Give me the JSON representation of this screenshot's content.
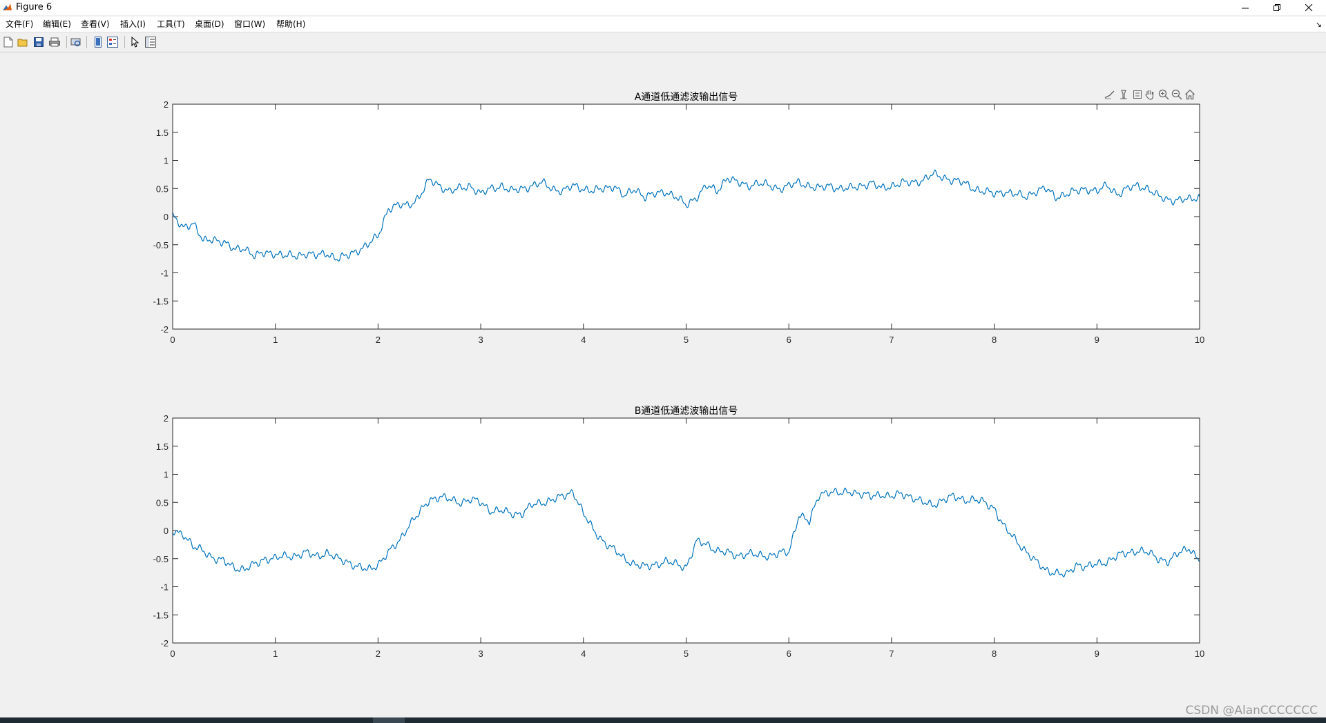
{
  "window": {
    "title": "Figure 6"
  },
  "menu": {
    "items": [
      "文件(F)",
      "编辑(E)",
      "查看(V)",
      "插入(I)",
      "工具(T)",
      "桌面(D)",
      "窗口(W)",
      "帮助(H)"
    ]
  },
  "toolbar": {
    "icons": [
      "new-figure-icon",
      "open-file-icon",
      "save-icon",
      "print-icon",
      "print-preview-icon",
      "link-plot-icon",
      "insert-legend-icon",
      "edit-plot-icon",
      "property-inspector-icon"
    ]
  },
  "axes_toolbar": {
    "icons": [
      "brush-icon",
      "data-tips-icon",
      "restore-view-icon",
      "pan-icon",
      "zoom-in-icon",
      "zoom-out-icon",
      "home-icon"
    ]
  },
  "colors": {
    "line": "#0072bd",
    "axes_bg": "#ffffff",
    "figure_bg": "#f0f0f0"
  },
  "watermark": "CSDN @AlanCCCCCCC",
  "chart_data": [
    {
      "type": "line",
      "title": "A通道低通滤波输出信号",
      "xlabel": "",
      "ylabel": "",
      "xlim": [
        0,
        10
      ],
      "ylim": [
        -2,
        2
      ],
      "xticks": [
        0,
        1,
        2,
        3,
        4,
        5,
        6,
        7,
        8,
        9,
        10
      ],
      "yticks": [
        2,
        1.5,
        1,
        0.5,
        0,
        -0.5,
        -1,
        -1.5,
        -2
      ],
      "grid": false,
      "series": [
        {
          "x": [
            0,
            0.1,
            0.2,
            0.3,
            0.4,
            0.5,
            0.6,
            0.7,
            0.8,
            0.9,
            1.0,
            1.1,
            1.2,
            1.3,
            1.4,
            1.5,
            1.6,
            1.7,
            1.8,
            1.9,
            2.0,
            2.1,
            2.2,
            2.3,
            2.4,
            2.5,
            2.6,
            2.7,
            2.8,
            2.9,
            3.0,
            3.1,
            3.2,
            3.3,
            3.4,
            3.5,
            3.6,
            3.7,
            3.8,
            3.9,
            4.0,
            4.1,
            4.2,
            4.3,
            4.4,
            4.5,
            4.6,
            4.7,
            4.8,
            4.9,
            5.0,
            5.1,
            5.2,
            5.3,
            5.4,
            5.5,
            5.6,
            5.7,
            5.8,
            5.9,
            6.0,
            6.1,
            6.2,
            6.3,
            6.4,
            6.5,
            6.6,
            6.7,
            6.8,
            6.9,
            7.0,
            7.1,
            7.2,
            7.3,
            7.4,
            7.5,
            7.6,
            7.7,
            7.8,
            7.9,
            8.0,
            8.1,
            8.2,
            8.3,
            8.4,
            8.5,
            8.6,
            8.7,
            8.8,
            8.9,
            9.0,
            9.1,
            9.2,
            9.3,
            9.4,
            9.5,
            9.6,
            9.7,
            9.8,
            9.9,
            10.0
          ],
          "y": [
            0,
            -0.2,
            -0.1,
            -0.45,
            -0.4,
            -0.45,
            -0.6,
            -0.55,
            -0.7,
            -0.65,
            -0.65,
            -0.7,
            -0.7,
            -0.65,
            -0.7,
            -0.65,
            -0.75,
            -0.7,
            -0.6,
            -0.5,
            -0.35,
            0.15,
            0.2,
            0.2,
            0.35,
            0.65,
            0.55,
            0.45,
            0.5,
            0.55,
            0.4,
            0.5,
            0.55,
            0.45,
            0.5,
            0.55,
            0.6,
            0.5,
            0.45,
            0.55,
            0.5,
            0.45,
            0.5,
            0.55,
            0.35,
            0.5,
            0.35,
            0.4,
            0.45,
            0.35,
            0.2,
            0.35,
            0.55,
            0.45,
            0.7,
            0.6,
            0.55,
            0.6,
            0.55,
            0.5,
            0.55,
            0.6,
            0.55,
            0.5,
            0.55,
            0.5,
            0.5,
            0.55,
            0.6,
            0.5,
            0.55,
            0.6,
            0.6,
            0.65,
            0.75,
            0.7,
            0.65,
            0.6,
            0.5,
            0.45,
            0.4,
            0.45,
            0.4,
            0.35,
            0.45,
            0.5,
            0.35,
            0.4,
            0.45,
            0.5,
            0.45,
            0.55,
            0.4,
            0.5,
            0.55,
            0.5,
            0.35,
            0.3,
            0.3,
            0.3,
            0.35
          ]
        }
      ]
    },
    {
      "type": "line",
      "title": "B通道低通滤波输出信号",
      "xlabel": "",
      "ylabel": "",
      "xlim": [
        0,
        10
      ],
      "ylim": [
        -2,
        2
      ],
      "xticks": [
        0,
        1,
        2,
        3,
        4,
        5,
        6,
        7,
        8,
        9,
        10
      ],
      "yticks": [
        2,
        1.5,
        1,
        0.5,
        0,
        -0.5,
        -1,
        -1.5,
        -2
      ],
      "grid": false,
      "series": [
        {
          "x": [
            0,
            0.1,
            0.2,
            0.3,
            0.4,
            0.5,
            0.6,
            0.7,
            0.8,
            0.9,
            1.0,
            1.1,
            1.2,
            1.3,
            1.4,
            1.5,
            1.6,
            1.7,
            1.8,
            1.9,
            2.0,
            2.1,
            2.2,
            2.3,
            2.4,
            2.5,
            2.6,
            2.7,
            2.8,
            2.9,
            3.0,
            3.1,
            3.2,
            3.3,
            3.4,
            3.5,
            3.6,
            3.7,
            3.8,
            3.9,
            4.0,
            4.1,
            4.2,
            4.3,
            4.4,
            4.5,
            4.6,
            4.7,
            4.8,
            4.9,
            5.0,
            5.1,
            5.2,
            5.3,
            5.4,
            5.5,
            5.6,
            5.7,
            5.8,
            5.9,
            6.0,
            6.1,
            6.2,
            6.3,
            6.4,
            6.5,
            6.6,
            6.7,
            6.8,
            6.9,
            7.0,
            7.1,
            7.2,
            7.3,
            7.4,
            7.5,
            7.6,
            7.7,
            7.8,
            7.9,
            8.0,
            8.1,
            8.2,
            8.3,
            8.4,
            8.5,
            8.6,
            8.7,
            8.8,
            8.9,
            9.0,
            9.1,
            9.2,
            9.3,
            9.4,
            9.5,
            9.6,
            9.7,
            9.8,
            9.9,
            10.0
          ],
          "y": [
            0,
            -0.05,
            -0.3,
            -0.35,
            -0.5,
            -0.55,
            -0.65,
            -0.7,
            -0.6,
            -0.5,
            -0.5,
            -0.45,
            -0.45,
            -0.4,
            -0.45,
            -0.4,
            -0.5,
            -0.55,
            -0.65,
            -0.7,
            -0.6,
            -0.4,
            -0.2,
            0.1,
            0.3,
            0.55,
            0.6,
            0.55,
            0.5,
            0.55,
            0.5,
            0.35,
            0.35,
            0.3,
            0.3,
            0.45,
            0.5,
            0.55,
            0.6,
            0.7,
            0.3,
            0.0,
            -0.2,
            -0.35,
            -0.5,
            -0.6,
            -0.65,
            -0.6,
            -0.55,
            -0.6,
            -0.65,
            -0.2,
            -0.25,
            -0.35,
            -0.4,
            -0.45,
            -0.4,
            -0.45,
            -0.45,
            -0.4,
            -0.4,
            0.3,
            0.15,
            0.65,
            0.7,
            0.65,
            0.7,
            0.65,
            0.6,
            0.65,
            0.6,
            0.65,
            0.6,
            0.5,
            0.45,
            0.55,
            0.6,
            0.55,
            0.55,
            0.5,
            0.4,
            0.05,
            -0.15,
            -0.35,
            -0.55,
            -0.7,
            -0.75,
            -0.8,
            -0.6,
            -0.65,
            -0.6,
            -0.55,
            -0.45,
            -0.4,
            -0.35,
            -0.4,
            -0.5,
            -0.55,
            -0.4,
            -0.3,
            -0.55
          ]
        }
      ]
    }
  ]
}
